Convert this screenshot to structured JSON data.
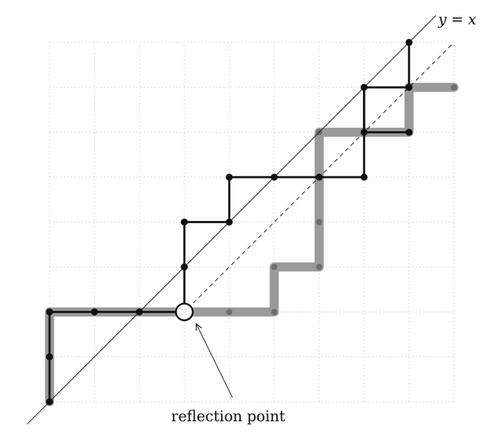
{
  "diagram": {
    "grid": {
      "cols": 9,
      "rows": 8
    },
    "diagonal_label": "y = x",
    "annotation": "reflection point",
    "reflection_point": [
      3,
      2
    ],
    "black_path": [
      [
        0,
        0
      ],
      [
        0,
        1
      ],
      [
        0,
        2
      ],
      [
        1,
        2
      ],
      [
        2,
        2
      ],
      [
        3,
        2
      ],
      [
        3,
        3
      ],
      [
        3,
        4
      ],
      [
        4,
        4
      ],
      [
        4,
        5
      ],
      [
        5,
        5
      ],
      [
        6,
        5
      ],
      [
        7,
        5
      ],
      [
        7,
        6
      ],
      [
        7,
        7
      ],
      [
        8,
        7
      ],
      [
        8,
        8
      ]
    ],
    "black_path_extra_segments": [
      [
        [
          7,
          7
        ],
        [
          7,
          6
        ]
      ],
      [
        [
          7,
          6
        ],
        [
          8,
          6
        ]
      ]
    ],
    "gray_path": [
      [
        0,
        0
      ],
      [
        0,
        1
      ],
      [
        0,
        2
      ],
      [
        1,
        2
      ],
      [
        2,
        2
      ],
      [
        3,
        2
      ],
      [
        4,
        2
      ],
      [
        5,
        2
      ],
      [
        5,
        3
      ],
      [
        6,
        3
      ],
      [
        6,
        4
      ],
      [
        6,
        5
      ],
      [
        6,
        6
      ],
      [
        7,
        6
      ],
      [
        8,
        6
      ],
      [
        8,
        7
      ],
      [
        9,
        7
      ]
    ],
    "colors": {
      "black_path": "#111111",
      "gray_path": "#9a9a9a",
      "grid": "#bdbdbd"
    }
  }
}
